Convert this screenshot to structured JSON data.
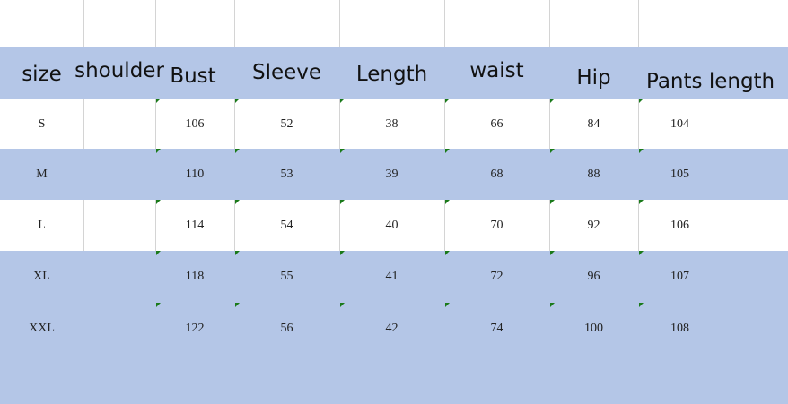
{
  "colors": {
    "band": "#b4c6e7",
    "marker": "#1a7a1a"
  },
  "headers": [
    "size",
    "shoulder",
    "Bust",
    "Sleeve",
    "Length",
    "waist",
    "Hip",
    "Pants length"
  ],
  "rows": [
    {
      "size": "S",
      "shoulder": "",
      "bust": "106",
      "sleeve": "52",
      "length": "38",
      "waist": "66",
      "hip": "84",
      "pants": "104"
    },
    {
      "size": "M",
      "shoulder": "",
      "bust": "110",
      "sleeve": "53",
      "length": "39",
      "waist": "68",
      "hip": "88",
      "pants": "105"
    },
    {
      "size": "L",
      "shoulder": "",
      "bust": "114",
      "sleeve": "54",
      "length": "40",
      "waist": "70",
      "hip": "92",
      "pants": "106"
    },
    {
      "size": "XL",
      "shoulder": "",
      "bust": "118",
      "sleeve": "55",
      "length": "41",
      "waist": "72",
      "hip": "96",
      "pants": "107"
    },
    {
      "size": "XXL",
      "shoulder": "",
      "bust": "122",
      "sleeve": "56",
      "length": "42",
      "waist": "74",
      "hip": "100",
      "pants": "108"
    }
  ]
}
